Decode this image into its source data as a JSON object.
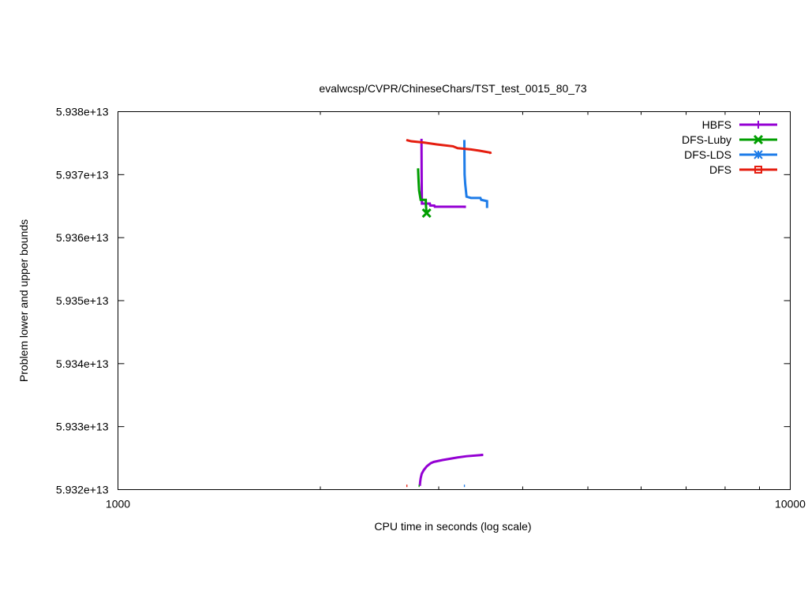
{
  "chart_data": {
    "type": "line",
    "title": "evalwcsp/CVPR/ChineseChars/TST_test_0015_80_73",
    "xlabel": "CPU time in seconds (log scale)",
    "ylabel": "Problem lower and upper bounds",
    "xscale": "log",
    "xlim": [
      1000,
      10000
    ],
    "ylim": [
      59320000000000.0,
      59380000000000.0
    ],
    "x_ticks": [
      {
        "value": 1000,
        "label": "1000"
      },
      {
        "value": 10000,
        "label": "10000"
      }
    ],
    "y_ticks": [
      {
        "value": 59320000000000.0,
        "label": "5.932e+13"
      },
      {
        "value": 59330000000000.0,
        "label": "5.933e+13"
      },
      {
        "value": 59340000000000.0,
        "label": "5.934e+13"
      },
      {
        "value": 59350000000000.0,
        "label": "5.935e+13"
      },
      {
        "value": 59360000000000.0,
        "label": "5.936e+13"
      },
      {
        "value": 59370000000000.0,
        "label": "5.937e+13"
      },
      {
        "value": 59380000000000.0,
        "label": "5.938e+13"
      }
    ],
    "grid": false,
    "legend_position": "top-right",
    "series": [
      {
        "name": "HBFS",
        "color": "#9400d3",
        "marker": "plus",
        "upper": [
          [
            2817,
            59375500000000
          ],
          [
            2828,
            59375500000000
          ],
          [
            2830,
            59369000000000
          ],
          [
            2832,
            59365400000000
          ],
          [
            2910,
            59365400000000
          ],
          [
            2915,
            59365100000000
          ],
          [
            2955,
            59365100000000
          ],
          [
            2960,
            59364900000000
          ],
          [
            3280,
            59364900000000
          ],
          [
            3280,
            59364700000000
          ]
        ],
        "lower": [
          [
            2812,
            59320600000000
          ],
          [
            2815,
            59321200000000
          ],
          [
            2820,
            59321800000000
          ],
          [
            2830,
            59322500000000
          ],
          [
            2850,
            59323100000000
          ],
          [
            2880,
            59323700000000
          ],
          [
            2920,
            59324200000000
          ],
          [
            2950,
            59324400000000
          ],
          [
            3040,
            59324700000000
          ],
          [
            3200,
            59325100000000
          ],
          [
            3300,
            59325300000000
          ],
          [
            3480,
            59325500000000
          ],
          [
            3480,
            59325700000000
          ]
        ],
        "markers": []
      },
      {
        "name": "DFS-Luby",
        "color": "#009e00",
        "marker": "x",
        "upper": [
          [
            2795,
            59371000000000
          ],
          [
            2800,
            59369000000000
          ],
          [
            2805,
            59367500000000
          ],
          [
            2820,
            59366000000000
          ],
          [
            2870,
            59366000000000
          ],
          [
            2872,
            59365000000000
          ],
          [
            2878,
            59363900000000
          ]
        ],
        "lower": [
          [
            2800,
            59320600000000
          ],
          [
            2810,
            59320600000000
          ]
        ],
        "markers": [
          [
            2878,
            59363900000000
          ]
        ]
      },
      {
        "name": "DFS-LDS",
        "color": "#1e7ce8",
        "marker": "star",
        "upper": [
          [
            3275,
            59375500000000
          ],
          [
            3278,
            59370000000000
          ],
          [
            3285,
            59368500000000
          ],
          [
            3300,
            59366500000000
          ],
          [
            3350,
            59366300000000
          ],
          [
            3460,
            59366300000000
          ],
          [
            3470,
            59366000000000
          ],
          [
            3540,
            59365800000000
          ],
          [
            3540,
            59364700000000
          ]
        ],
        "lower": [
          [
            3270,
            59320600000000
          ],
          [
            3282,
            59320600000000
          ]
        ],
        "markers": []
      },
      {
        "name": "DFS",
        "color": "#e51e10",
        "marker": "square",
        "upper": [
          [
            2685,
            59375500000000
          ],
          [
            2730,
            59375300000000
          ],
          [
            2850,
            59375100000000
          ],
          [
            2980,
            59374800000000
          ],
          [
            3150,
            59374500000000
          ],
          [
            3200,
            59374200000000
          ],
          [
            3350,
            59374000000000
          ],
          [
            3450,
            59373800000000
          ],
          [
            3580,
            59373500000000
          ],
          [
            3585,
            59373300000000
          ]
        ],
        "lower": [
          [
            2685,
            59320600000000
          ],
          [
            2695,
            59320600000000
          ]
        ],
        "markers": []
      }
    ]
  }
}
